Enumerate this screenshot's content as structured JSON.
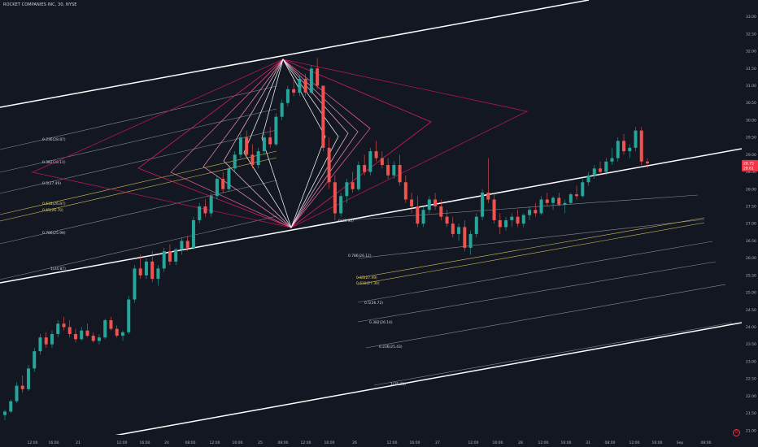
{
  "header": {
    "title": "ROCKET COMPANIES INC, 30, NYSE"
  },
  "price_tags": [
    {
      "value": "28.75",
      "color": "#f23645"
    },
    {
      "value": "28.61",
      "color": "#f23645"
    }
  ],
  "logo": {
    "icon": "tradingview-logo-icon"
  },
  "colors": {
    "background": "#131722",
    "up": "#26a69a",
    "down": "#ef5350",
    "channel": "#ffffff",
    "fib_line": "#8a8d96",
    "fib_gold": "#d8c35a",
    "fan_pink": "#e91e63"
  },
  "chart_data": {
    "type": "candlestick",
    "symbol": "ROCKET COMPANIES INC",
    "interval": "30",
    "exchange": "NYSE",
    "ylim": [
      20.95,
      33.35
    ],
    "y_ticks": [
      "33.00",
      "32.50",
      "32.00",
      "31.50",
      "31.00",
      "30.50",
      "30.00",
      "29.50",
      "29.00",
      "28.50",
      "28.00",
      "27.50",
      "27.00",
      "26.50",
      "26.00",
      "25.50",
      "25.00",
      "24.50",
      "24.00",
      "23.50",
      "23.00",
      "22.50",
      "22.00",
      "21.50",
      "21.00"
    ],
    "x_ticks": [
      "12:00",
      "16:00",
      "21",
      "12:00",
      "16:00",
      "24",
      "08:00",
      "12:00",
      "16:00",
      "25",
      "08:00",
      "12:00",
      "16:00",
      "26",
      "12:00",
      "16:00",
      "27",
      "12:00",
      "16:00",
      "28",
      "12:00",
      "16:00",
      "31",
      "08:00",
      "12:00",
      "16:00",
      "Sep",
      "08:00"
    ],
    "candles": [
      [
        21.45,
        21.6,
        21.3,
        21.55
      ],
      [
        21.55,
        21.9,
        21.5,
        21.85
      ],
      [
        21.85,
        22.4,
        21.8,
        22.3
      ],
      [
        22.3,
        22.6,
        22.1,
        22.2
      ],
      [
        22.2,
        22.9,
        22.15,
        22.8
      ],
      [
        22.8,
        23.4,
        22.7,
        23.3
      ],
      [
        23.3,
        23.8,
        23.2,
        23.7
      ],
      [
        23.7,
        23.85,
        23.4,
        23.5
      ],
      [
        23.5,
        23.9,
        23.4,
        23.8
      ],
      [
        23.8,
        24.2,
        23.7,
        24.1
      ],
      [
        24.1,
        24.3,
        23.9,
        24.0
      ],
      [
        24.0,
        24.2,
        23.7,
        23.8
      ],
      [
        23.8,
        23.95,
        23.55,
        23.65
      ],
      [
        23.65,
        24.0,
        23.6,
        23.9
      ],
      [
        23.9,
        24.1,
        23.7,
        23.75
      ],
      [
        23.75,
        23.85,
        23.55,
        23.6
      ],
      [
        23.6,
        23.8,
        23.5,
        23.7
      ],
      [
        23.7,
        24.25,
        23.65,
        24.2
      ],
      [
        24.2,
        24.3,
        23.9,
        23.95
      ],
      [
        23.95,
        24.05,
        23.7,
        23.75
      ],
      [
        23.75,
        23.9,
        23.6,
        23.85
      ],
      [
        23.85,
        24.9,
        23.8,
        24.8
      ],
      [
        24.8,
        25.8,
        24.7,
        25.7
      ],
      [
        25.7,
        26.1,
        25.4,
        25.5
      ],
      [
        25.5,
        26.0,
        25.4,
        25.9
      ],
      [
        25.9,
        26.2,
        25.3,
        25.4
      ],
      [
        25.4,
        25.8,
        25.2,
        25.7
      ],
      [
        25.7,
        26.3,
        25.6,
        26.2
      ],
      [
        26.2,
        26.4,
        25.8,
        25.9
      ],
      [
        25.9,
        26.3,
        25.8,
        26.25
      ],
      [
        26.25,
        26.6,
        26.1,
        26.5
      ],
      [
        26.5,
        26.65,
        26.2,
        26.3
      ],
      [
        26.3,
        27.2,
        26.25,
        27.1
      ],
      [
        27.1,
        27.6,
        27.0,
        27.5
      ],
      [
        27.5,
        27.7,
        27.2,
        27.3
      ],
      [
        27.3,
        27.9,
        27.2,
        27.8
      ],
      [
        27.8,
        28.4,
        27.7,
        28.3
      ],
      [
        28.3,
        28.5,
        27.9,
        28.0
      ],
      [
        28.0,
        28.7,
        27.95,
        28.6
      ],
      [
        28.6,
        29.1,
        28.5,
        29.0
      ],
      [
        29.0,
        29.6,
        28.9,
        29.5
      ],
      [
        29.5,
        29.7,
        28.9,
        29.0
      ],
      [
        29.0,
        29.3,
        28.6,
        28.7
      ],
      [
        28.7,
        29.2,
        28.6,
        29.1
      ],
      [
        29.1,
        29.6,
        29.0,
        29.5
      ],
      [
        29.5,
        29.8,
        29.2,
        29.3
      ],
      [
        29.3,
        30.2,
        29.25,
        30.1
      ],
      [
        30.1,
        30.6,
        30.0,
        30.5
      ],
      [
        30.5,
        31.0,
        30.4,
        30.9
      ],
      [
        30.9,
        31.2,
        30.7,
        30.8
      ],
      [
        30.8,
        31.3,
        30.7,
        31.2
      ],
      [
        31.2,
        31.35,
        30.7,
        30.8
      ],
      [
        30.8,
        31.6,
        30.75,
        31.5
      ],
      [
        31.5,
        31.8,
        30.9,
        31.0
      ],
      [
        31.0,
        30.9,
        29.1,
        29.2
      ],
      [
        29.2,
        29.5,
        28.0,
        28.2
      ],
      [
        28.2,
        28.4,
        27.1,
        27.3
      ],
      [
        27.3,
        27.9,
        27.2,
        27.8
      ],
      [
        27.8,
        28.3,
        27.6,
        28.2
      ],
      [
        28.2,
        28.5,
        27.9,
        28.0
      ],
      [
        28.0,
        28.8,
        27.95,
        28.7
      ],
      [
        28.7,
        29.0,
        28.4,
        28.5
      ],
      [
        28.5,
        29.2,
        28.4,
        29.1
      ],
      [
        29.1,
        29.4,
        28.8,
        28.9
      ],
      [
        28.9,
        29.1,
        28.6,
        28.7
      ],
      [
        28.7,
        28.9,
        28.3,
        28.4
      ],
      [
        28.4,
        28.8,
        28.3,
        28.7
      ],
      [
        28.7,
        29.0,
        28.1,
        28.2
      ],
      [
        28.2,
        28.4,
        27.6,
        27.7
      ],
      [
        27.7,
        27.9,
        27.3,
        27.5
      ],
      [
        27.5,
        27.8,
        26.9,
        27.0
      ],
      [
        27.0,
        27.5,
        26.9,
        27.4
      ],
      [
        27.4,
        27.8,
        27.3,
        27.7
      ],
      [
        27.7,
        27.9,
        27.4,
        27.5
      ],
      [
        27.5,
        27.7,
        27.1,
        27.2
      ],
      [
        27.2,
        27.4,
        26.9,
        27.0
      ],
      [
        27.0,
        27.2,
        26.6,
        26.7
      ],
      [
        26.7,
        27.0,
        26.5,
        26.9
      ],
      [
        26.9,
        27.1,
        26.2,
        26.3
      ],
      [
        26.3,
        26.8,
        26.1,
        26.7
      ],
      [
        26.7,
        27.3,
        26.6,
        27.2
      ],
      [
        27.2,
        28.0,
        27.1,
        27.9
      ],
      [
        27.9,
        28.9,
        27.6,
        27.7
      ],
      [
        27.7,
        27.9,
        27.0,
        27.1
      ],
      [
        27.1,
        27.3,
        26.7,
        26.9
      ],
      [
        26.9,
        27.2,
        26.8,
        27.1
      ],
      [
        27.1,
        27.3,
        26.9,
        27.2
      ],
      [
        27.2,
        27.4,
        26.9,
        27.0
      ],
      [
        27.0,
        27.3,
        26.9,
        27.25
      ],
      [
        27.25,
        27.5,
        27.1,
        27.4
      ],
      [
        27.4,
        27.6,
        27.2,
        27.3
      ],
      [
        27.3,
        27.8,
        27.25,
        27.7
      ],
      [
        27.7,
        27.9,
        27.5,
        27.6
      ],
      [
        27.6,
        27.8,
        27.4,
        27.75
      ],
      [
        27.75,
        27.9,
        27.5,
        27.55
      ],
      [
        27.55,
        27.7,
        27.3,
        27.6
      ],
      [
        27.6,
        27.9,
        27.55,
        27.85
      ],
      [
        27.85,
        28.1,
        27.7,
        27.8
      ],
      [
        27.8,
        28.3,
        27.75,
        28.2
      ],
      [
        28.2,
        28.5,
        28.1,
        28.4
      ],
      [
        28.4,
        28.7,
        28.3,
        28.6
      ],
      [
        28.6,
        28.8,
        28.4,
        28.5
      ],
      [
        28.5,
        28.9,
        28.4,
        28.8
      ],
      [
        28.8,
        29.2,
        28.7,
        28.9
      ],
      [
        28.9,
        29.5,
        28.8,
        29.4
      ],
      [
        29.4,
        29.6,
        29.0,
        29.1
      ],
      [
        29.1,
        29.3,
        28.9,
        29.2
      ],
      [
        29.2,
        29.8,
        29.1,
        29.7
      ],
      [
        29.7,
        29.8,
        28.7,
        28.8
      ],
      [
        28.8,
        28.9,
        28.6,
        28.75
      ]
    ],
    "fib_levels": [
      {
        "label": "0.236(28.87)",
        "color": "normal"
      },
      {
        "label": "0.382(28.11)",
        "color": "normal"
      },
      {
        "label": "0.5(27.49)",
        "color": "normal"
      },
      {
        "label": "0.618(26.87)",
        "color": "gold"
      },
      {
        "label": "0.65(26.70)",
        "color": "gold"
      },
      {
        "label": "0.786(25.99)",
        "color": "normal"
      },
      {
        "label": "1(24.87)",
        "color": "normal"
      }
    ],
    "fib_levels_lower": [
      {
        "label": "0(28.90)",
        "color": "normal"
      },
      {
        "label": "0.786(26.12)",
        "color": "normal"
      },
      {
        "label": "0.65(27.49)",
        "color": "gold"
      },
      {
        "label": "0.618(27.30)",
        "color": "gold"
      },
      {
        "label": "0.5(26.72)",
        "color": "normal"
      },
      {
        "label": "0.382(26.14)",
        "color": "normal"
      },
      {
        "label": "0.236(25.43)",
        "color": "normal"
      },
      {
        "label": "1(25.33)",
        "color": "normal"
      }
    ],
    "grid": false
  }
}
